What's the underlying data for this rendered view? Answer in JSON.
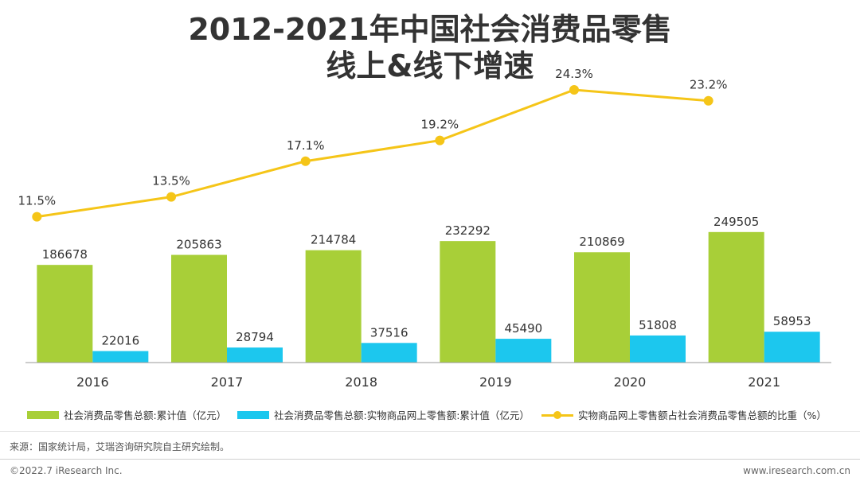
{
  "title_line1": "2012-2021年中国社会消费品零售",
  "title_line2": "线上&线下增速",
  "legend": {
    "item1": "社会消费品零售总额:累计值（亿元）",
    "item2": "社会消费品零售总额:实物商品网上零售额:累计值（亿元）",
    "item3": "实物商品网上零售额占社会消费品零售总额的比重（%）"
  },
  "source": "来源：国家统计局，艾瑞咨询研究院自主研究绘制。",
  "footer_left": "©2022.7 iResearch Inc.",
  "footer_right": "www.iresearch.com.cn",
  "colors": {
    "green": "#A8CF38",
    "blue": "#1CC7EE",
    "yellow": "#F5C518",
    "axis": "#999999"
  },
  "chart_data": {
    "type": "bar+line",
    "title": "2012-2021年中国社会消费品零售线上&线下增速",
    "categories": [
      "2016",
      "2017",
      "2018",
      "2019",
      "2020",
      "2021"
    ],
    "series": [
      {
        "name": "社会消费品零售总额:累计值（亿元）",
        "type": "bar",
        "values": [
          186678,
          205863,
          214784,
          232292,
          210869,
          249505
        ]
      },
      {
        "name": "社会消费品零售总额:实物商品网上零售额:累计值（亿元）",
        "type": "bar",
        "values": [
          22016,
          28794,
          37516,
          45490,
          51808,
          58953
        ]
      },
      {
        "name": "实物商品网上零售额占社会消费品零售总额的比重（%）",
        "type": "line",
        "values": [
          11.5,
          13.5,
          17.1,
          19.2,
          24.3,
          23.2
        ],
        "labels": [
          "11.5%",
          "13.5%",
          "17.1%",
          "19.2%",
          "24.3%",
          "23.2%"
        ]
      }
    ],
    "bar_ylim": [
      0,
      275000
    ],
    "line_ylim": [
      0,
      30
    ],
    "legend_position": "bottom"
  }
}
